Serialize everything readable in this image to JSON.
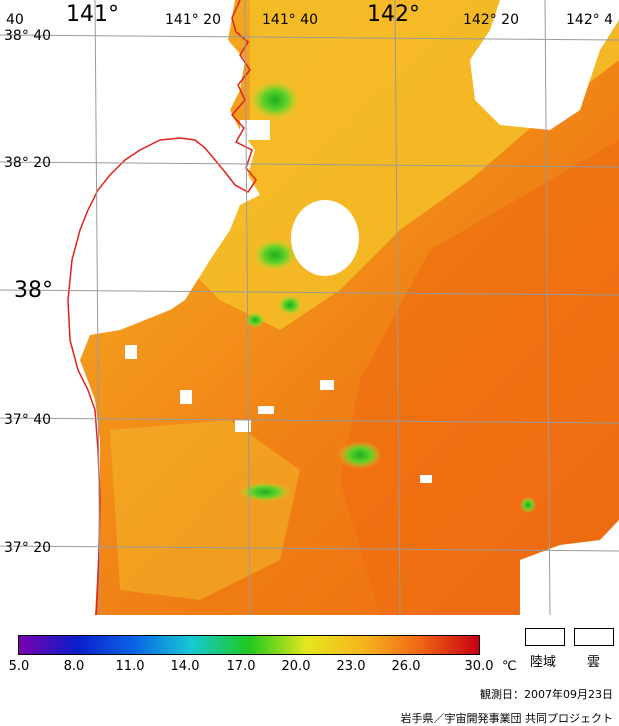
{
  "map": {
    "lon_labels": [
      {
        "text": "141°",
        "size": "big"
      },
      {
        "text": "141° 20",
        "size": "sm"
      },
      {
        "text": "141° 40",
        "size": "sm"
      },
      {
        "text": "142°",
        "size": "big"
      },
      {
        "text": "142° 20",
        "size": "sm"
      },
      {
        "text": "142° 4",
        "size": "sm"
      },
      {
        "text": "40",
        "size": "sm"
      }
    ],
    "lat_labels": [
      {
        "text": "38° 40",
        "size": "sm"
      },
      {
        "text": "38° 20",
        "size": "sm"
      },
      {
        "text": "38°",
        "size": "big"
      },
      {
        "text": "37° 40",
        "size": "sm"
      },
      {
        "text": "37° 20",
        "size": "sm"
      }
    ],
    "colors": {
      "warm_orange": "#f28a18",
      "deep_orange": "#ef6a10",
      "yellow_orange": "#f5ae22",
      "yellow": "#f2cc2a",
      "green": "#4fd02a",
      "coast": "#e3211c",
      "grid": "#9a9a9a"
    }
  },
  "colorbar": {
    "ticks": [
      "5.0",
      "8.0",
      "11.0",
      "14.0",
      "17.0",
      "20.0",
      "23.0",
      "26.0",
      "30.0"
    ],
    "unit": "℃",
    "stops": [
      "#7a00b0",
      "#0a1ec8",
      "#0a64e6",
      "#16c8d2",
      "#1ec81e",
      "#e6e61e",
      "#f5b41e",
      "#f06414",
      "#c80014"
    ]
  },
  "legend": {
    "land_label": "陸域",
    "cloud_label": "雲"
  },
  "footer": {
    "observation_date": "観測日：2007年09月23日",
    "credit": "岩手県／宇宙開発事業団 共同プロジェクト"
  }
}
